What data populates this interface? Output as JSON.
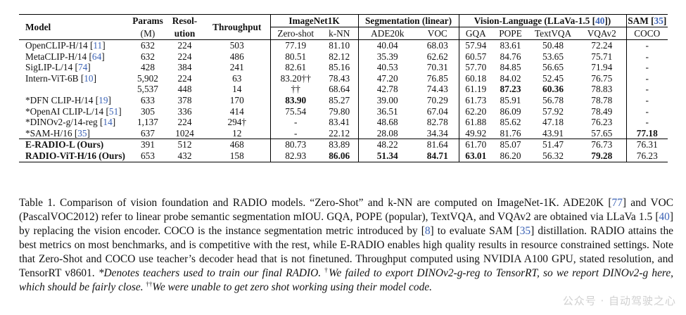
{
  "table": {
    "group_headers": {
      "imagenet": "ImageNet1K",
      "segmentation": "Segmentation (linear)",
      "vl_prefix": "Vision-Language (LLaVa-1.5 [",
      "vl_cite": "40",
      "vl_suffix": "])",
      "sam_prefix": "SAM [",
      "sam_cite": "35",
      "sam_suffix": "]"
    },
    "columns": {
      "model": "Model",
      "params_1": "Params",
      "params_2": "(M)",
      "res_1": "Resol-",
      "res_2": "ution",
      "throughput": "Throughput",
      "zero_shot": "Zero-shot",
      "knn": "k-NN",
      "ade20k": "ADE20k",
      "voc": "VOC",
      "gqa": "GQA",
      "pope": "POPE",
      "textvqa": "TextVQA",
      "vqav2": "VQAv2",
      "coco": "COCO"
    },
    "rows": [
      {
        "name": "OpenCLIP-H/14 [",
        "cite": "11",
        "end": "]",
        "cells": [
          "632",
          "224",
          "503",
          "77.19",
          "81.10",
          "40.04",
          "68.03",
          "57.94",
          "83.61",
          "50.48",
          "72.24",
          "-"
        ]
      },
      {
        "name": "MetaCLIP-H/14 [",
        "cite": "64",
        "end": "]",
        "cells": [
          "632",
          "224",
          "486",
          "80.51",
          "82.12",
          "35.39",
          "62.62",
          "60.57",
          "84.76",
          "53.65",
          "75.71",
          "-"
        ]
      },
      {
        "name": "SigLIP-L/14 [",
        "cite": "74",
        "end": "]",
        "cells": [
          "428",
          "384",
          "241",
          "82.61",
          "85.16",
          "40.53",
          "70.31",
          "57.70",
          "84.85",
          "56.65",
          "71.94",
          "-"
        ]
      },
      {
        "name": "Intern-ViT-6B [",
        "cite": "10",
        "end": "]",
        "cells": [
          "5,902",
          "224",
          "63",
          "83.20††",
          "78.43",
          "47.20",
          "76.85",
          "60.18",
          "84.02",
          "52.45",
          "76.75",
          "-"
        ]
      },
      {
        "name": "",
        "cite": "",
        "end": "",
        "cells": [
          "5,537",
          "448",
          "14",
          "††",
          "68.64",
          "42.78",
          "74.43",
          "61.19",
          "87.23",
          "60.36",
          "78.83",
          "-"
        ]
      },
      {
        "name": "*DFN CLIP-H/14 [",
        "cite": "19",
        "end": "]",
        "cells": [
          "633",
          "378",
          "170",
          "83.90",
          "85.27",
          "39.00",
          "70.29",
          "61.73",
          "85.91",
          "56.78",
          "78.78",
          "-"
        ]
      },
      {
        "name": "*OpenAI CLIP-L/14 [",
        "cite": "51",
        "end": "]",
        "cells": [
          "305",
          "336",
          "414",
          "75.54",
          "79.80",
          "36.51",
          "67.04",
          "62.20",
          "86.09",
          "57.92",
          "78.49",
          "-"
        ]
      },
      {
        "name": "*DINOv2-g/14-reg [",
        "cite": "14",
        "end": "]",
        "cells": [
          "1,137",
          "224",
          "294†",
          "-",
          "83.41",
          "48.68",
          "82.78",
          "61.88",
          "85.62",
          "47.18",
          "76.23",
          "-"
        ]
      },
      {
        "name": "*SAM-H/16 [",
        "cite": "35",
        "end": "]",
        "cells": [
          "637",
          "1024",
          "12",
          "-",
          "22.12",
          "28.08",
          "34.34",
          "49.92",
          "81.76",
          "43.91",
          "57.65",
          "77.18"
        ]
      },
      {
        "name": "E-RADIO-L (Ours)",
        "cite": "",
        "end": "",
        "cells": [
          "391",
          "512",
          "468",
          "80.73",
          "83.89",
          "48.22",
          "81.64",
          "61.70",
          "85.07",
          "51.47",
          "76.73",
          "76.31"
        ]
      },
      {
        "name": "RADIO-ViT-H/16 (Ours)",
        "cite": "",
        "end": "",
        "cells": [
          "653",
          "432",
          "158",
          "82.93",
          "86.06",
          "51.34",
          "84.71",
          "63.01",
          "86.20",
          "56.32",
          "79.28",
          "76.23"
        ]
      }
    ]
  },
  "caption": {
    "p1": "Table 1. Comparison of vision foundation and RADIO models. “Zero-Shot” and k-NN are computed on ImageNet-1K. ADE20K [",
    "c1": "77",
    "p2": "] and VOC (PascalVOC2012) refer to linear probe semantic segmentation mIOU. GQA, POPE (popular), TextVQA, and VQAv2 are obtained via LLaVa 1.5 [",
    "c2": "40",
    "p3": "] by replacing the vision encoder. COCO is the instance segmentation metric introduced by [",
    "c3": "8",
    "p4": "] to evaluate SAM [",
    "c4": "35",
    "p5": "] distillation. RADIO attains the best metrics on most benchmarks, and is competitive with the rest, while E-RADIO enables high quality results in resource constrained settings. Note that Zero-Shot and COCO use teacher’s decoder head that is not finetuned. Throughput computed using NVIDIA A100 GPU, stated resolution, and TensorRT v8601. ",
    "i1": "*Denotes teachers used to train our final RADIO.",
    "d1": "†",
    "i2": "We failed to export DINOv2-g-reg to TensorRT, so we report DINOv2-g here, which should be fairly close.",
    "d2": "††",
    "i3": "We were unable to get zero shot working using their model code."
  },
  "watermark": "公众号 · 自动驾驶之心",
  "colors": {
    "citation": "#3b62b5",
    "text": "#111111"
  }
}
